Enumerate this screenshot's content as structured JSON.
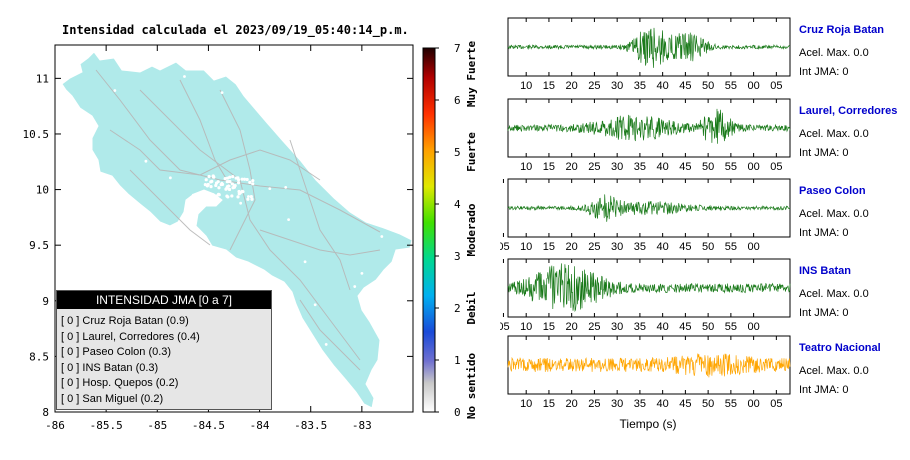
{
  "map": {
    "title": "Intensidad calculada el 2023/09/19_05:40:14_p.m.",
    "lon_ticks": [
      "-86",
      "-85.5",
      "-85",
      "-84.5",
      "-84",
      "-83.5",
      "-83"
    ],
    "lat_ticks": [
      "8",
      "8.5",
      "9",
      "9.5",
      "10",
      "10.5",
      "11"
    ],
    "xlim": [
      -86,
      -82.5
    ],
    "ylim": [
      8,
      11.3
    ],
    "land_color": "#b0eaea",
    "legend": {
      "title": "INTENSIDAD JMA [0 a 7]",
      "items": [
        "[ 0 ]  Cruz Roja Batan (0.9)",
        "[ 0 ]  Laurel, Corredores (0.4)",
        "[ 0 ]  Paseo Colon (0.3)",
        "[ 0 ]  INS Batan (0.3)",
        "[ 0 ]  Hosp. Quepos (0.2)",
        "[ 0 ]  San Miguel (0.2)"
      ]
    }
  },
  "colorbar": {
    "ticks": [
      "0",
      "1",
      "2",
      "3",
      "4",
      "5",
      "6",
      "7"
    ],
    "categories": [
      "No sentido",
      "Debil",
      "Moderado",
      "Fuerte",
      "Muy Fuerte"
    ],
    "range": [
      0,
      7
    ]
  },
  "chart_data": {
    "type": "line",
    "xlabel": "Tiempo (s)",
    "traces": [
      {
        "station": "Cruz Roja Batan",
        "acel": "Acel. Max. 0.0",
        "int": "Int JMA: 0",
        "color": "#1a7a1a",
        "ticks": [
          "10",
          "15",
          "20",
          "25",
          "30",
          "35",
          "40",
          "45",
          "50",
          "55",
          "00",
          "05"
        ],
        "first_tick_offset": 10,
        "amp": 0.9
      },
      {
        "station": "Laurel, Corredores",
        "acel": "Acel. Max. 0.0",
        "int": "Int JMA: 0",
        "color": "#1a7a1a",
        "ticks": [
          "10",
          "15",
          "20",
          "25",
          "30",
          "35",
          "40",
          "45",
          "50",
          "55",
          "00",
          "05"
        ],
        "first_tick_offset": 10,
        "amp": 0.8
      },
      {
        "station": "Paseo Colon",
        "acel": "Acel. Max. 0.0",
        "int": "Int JMA: 0",
        "color": "#1a7a1a",
        "ticks": [
          "05",
          "10",
          "15",
          "20",
          "25",
          "30",
          "35",
          "40",
          "45",
          "50",
          "55",
          "00"
        ],
        "first_tick_offset": 5,
        "amp": 0.7
      },
      {
        "station": "INS Batan",
        "acel": "Acel. Max. 0.0",
        "int": "Int JMA: 0",
        "color": "#1a7a1a",
        "ticks": [
          "05",
          "10",
          "15",
          "20",
          "25",
          "30",
          "35",
          "40",
          "45",
          "50",
          "55",
          "00"
        ],
        "first_tick_offset": 5,
        "amp": 0.9
      },
      {
        "station": "Teatro Nacional",
        "acel": "Acel. Max. 0.0",
        "int": "Int JMA: 0",
        "color": "#ffa500",
        "ticks": [
          "10",
          "15",
          "20",
          "25",
          "30",
          "35",
          "40",
          "45",
          "50",
          "55",
          "00",
          "05"
        ],
        "first_tick_offset": 10,
        "amp": 0.6
      }
    ]
  }
}
